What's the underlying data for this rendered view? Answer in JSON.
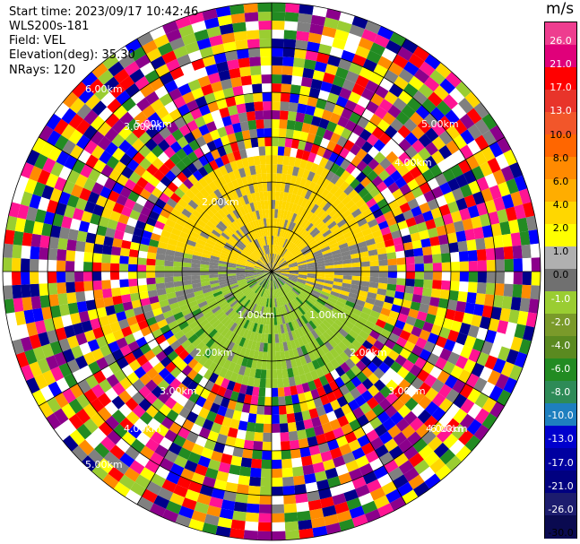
{
  "header": {
    "start_time": "Start time: 2023/09/17 10:42:46",
    "site": "WLS200s-181",
    "field": "Field: VEL",
    "elevation": "Elevation(deg): 35.30",
    "nrays": "NRays: 120"
  },
  "colorbar": {
    "unit": "m/s",
    "ticks": [
      "26.0",
      "21.0",
      "17.0",
      "13.0",
      "10.0",
      "8.0",
      "6.0",
      "4.0",
      "2.0",
      "1.0",
      "0.0",
      "-1.0",
      "-2.0",
      "-4.0",
      "-6.0",
      "-8.0",
      "-10.0",
      "-13.0",
      "-17.0",
      "-21.0",
      "-26.0",
      "-30.0"
    ],
    "colors": [
      "#ee3d8f",
      "#e0007a",
      "#ff0000",
      "#e8342a",
      "#f2562a",
      "#ff6600",
      "#ff8a00",
      "#ffad00",
      "#ffd700",
      "#ffff00",
      "#b0b0b0",
      "#707070",
      "#9acd32",
      "#7a9a2a",
      "#5a8a20",
      "#228b22",
      "#2e8b57",
      "#1e7fbf",
      "#0000cd",
      "#0000a0",
      "#000080",
      "#1c1c6e",
      "#0a0a50"
    ]
  },
  "chart_data": {
    "type": "heatmap",
    "subtype": "ppi-radial-velocity",
    "field": "VEL",
    "units": "m/s",
    "nrays": 120,
    "elevation_deg": 35.3,
    "range_ring_labels": [
      "1.00km",
      "2.00km",
      "3.00km",
      "4.00km",
      "5.00km",
      "6.00km"
    ],
    "range_labels_shown": [
      "1.00km",
      "1.00km",
      "2.00km",
      "2.00km",
      "2.00km",
      "3.00km",
      "3.00km",
      "3.00km",
      "4.00km",
      "4.00km",
      "4.00km",
      "5.00km",
      "5.00km",
      "5.00km",
      "6.00km",
      "6.00km"
    ],
    "colors": {
      "ring": "#000000",
      "noise": [
        "#ff1493",
        "#ff0000",
        "#ffff00",
        "#0000ff",
        "#00008b",
        "#228b22",
        "#9acd32",
        "#808080",
        "#ff8c00",
        "#8b008b",
        "#ffd700",
        "#ffffff"
      ],
      "approaching": "#9acd32",
      "receding": "#ffd700",
      "calm": "#808080"
    }
  }
}
